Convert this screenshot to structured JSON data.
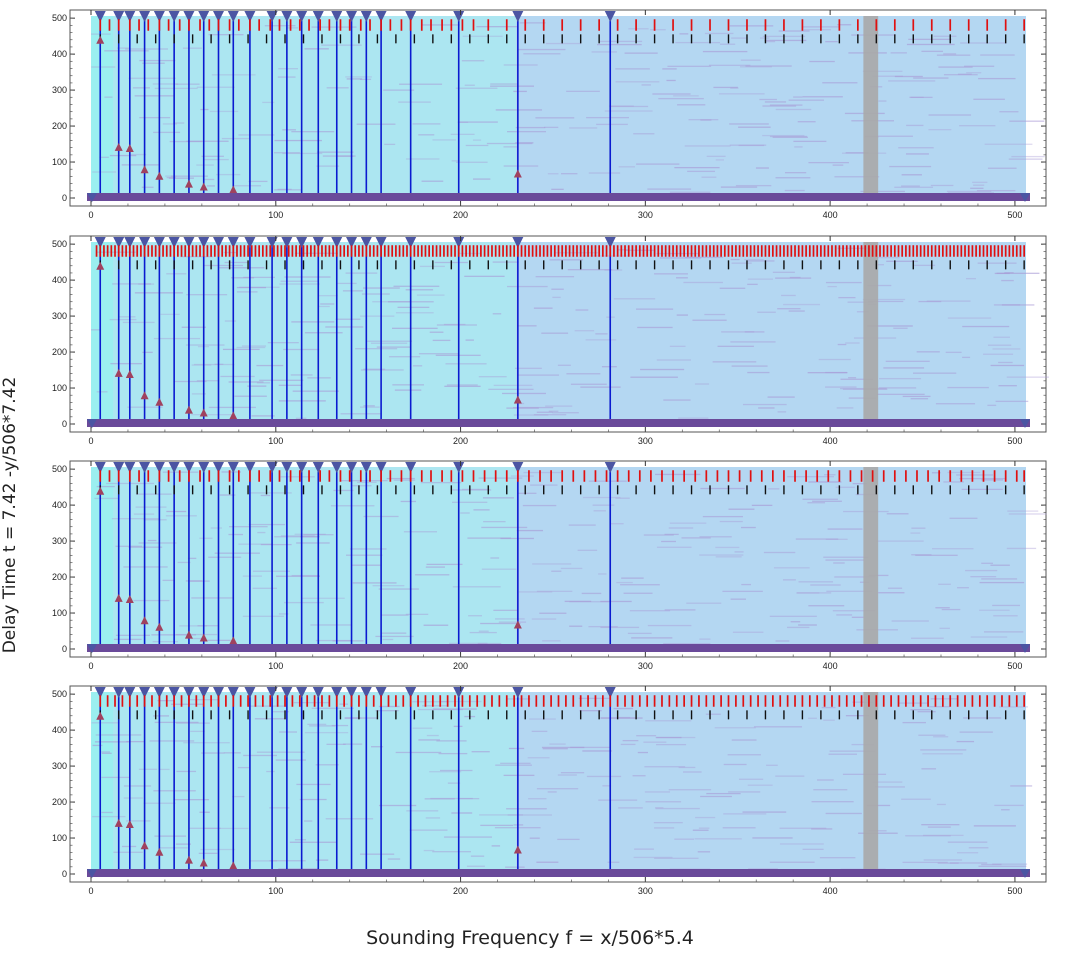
{
  "xlabel": "Sounding Frequency f = x/506*5.4",
  "ylabel": "Delay Time t = 7.42 -y/506*7.42",
  "colors": {
    "background": "#b4d7f2",
    "band_light": "#a6f2f0",
    "texture": "#a89bd6",
    "gray_column": "#a9a9a9",
    "blue_line": "#0a1ad0",
    "marker_triangle": "#4b55a3",
    "red_tick": "#e01010",
    "black_tick": "#111111",
    "peak_marker": "#a0425e",
    "baseline": "#6a4a9a"
  },
  "chart_data": [
    {
      "type": "heatmap",
      "panel": 1,
      "xlim": [
        0,
        506
      ],
      "ylim": [
        0,
        506
      ],
      "xticks": [
        0,
        100,
        200,
        300,
        400,
        500
      ],
      "yticks": [
        0,
        100,
        200,
        300,
        400,
        500
      ],
      "vertical_lines_x": [
        5,
        15,
        21,
        29,
        37,
        45,
        53,
        61,
        69,
        77,
        86,
        98,
        106,
        114,
        123,
        133,
        141,
        149,
        157,
        173,
        199,
        231,
        281
      ],
      "peaks": [
        [
          5,
          440
        ],
        [
          15,
          142
        ],
        [
          21,
          139
        ],
        [
          29,
          80
        ],
        [
          37,
          62
        ],
        [
          53,
          40
        ],
        [
          61,
          32
        ],
        [
          77,
          24
        ],
        [
          231,
          68
        ]
      ],
      "red_marks_x": [
        5,
        10,
        15,
        21,
        26,
        31,
        37,
        42,
        48,
        53,
        59,
        64,
        69,
        75,
        80,
        86,
        91,
        97,
        102,
        108,
        113,
        118,
        124,
        129,
        135,
        140,
        146,
        151,
        157,
        162,
        168,
        173,
        179,
        184,
        190,
        195,
        201,
        207,
        215,
        225,
        235,
        245,
        255,
        265,
        275,
        285,
        295,
        305,
        315,
        325,
        335,
        345,
        355,
        365,
        375,
        385,
        395,
        405,
        415,
        425,
        435,
        445,
        455,
        465,
        475,
        485,
        495,
        505
      ],
      "black_marks_x": [
        5,
        15,
        25,
        35,
        45,
        55,
        65,
        75,
        85,
        95,
        105,
        115,
        125,
        135,
        145,
        155,
        165,
        175,
        185,
        195,
        205,
        215,
        225,
        235,
        245,
        255,
        265,
        275,
        285,
        295,
        305,
        315,
        325,
        335,
        345,
        355,
        365,
        375,
        385,
        395,
        405,
        415,
        425,
        435,
        445,
        455,
        465,
        475,
        485,
        495,
        505
      ],
      "gray_band_x": [
        418,
        426
      ]
    },
    {
      "type": "heatmap",
      "panel": 2,
      "xlim": [
        0,
        506
      ],
      "ylim": [
        0,
        506
      ],
      "xticks": [
        0,
        100,
        200,
        300,
        400,
        500
      ],
      "yticks": [
        0,
        100,
        200,
        300,
        400,
        500
      ],
      "vertical_lines_x": [
        5,
        15,
        21,
        29,
        37,
        45,
        53,
        61,
        69,
        77,
        86,
        98,
        106,
        114,
        123,
        133,
        141,
        149,
        157,
        173,
        199,
        231,
        281
      ],
      "peaks": [
        [
          5,
          440
        ],
        [
          15,
          142
        ],
        [
          21,
          139
        ],
        [
          29,
          80
        ],
        [
          37,
          62
        ],
        [
          53,
          40
        ],
        [
          61,
          32
        ],
        [
          77,
          24
        ],
        [
          231,
          68
        ]
      ],
      "red_marks_x": [
        3,
        5,
        7,
        9,
        11,
        13,
        15,
        17,
        19,
        21,
        23,
        25,
        27,
        29,
        31,
        33,
        35,
        37,
        39,
        41,
        43,
        45,
        47,
        49,
        51,
        53,
        55,
        57,
        59,
        61,
        63,
        65,
        67,
        69,
        71,
        73,
        75,
        77,
        79,
        81,
        83,
        85,
        87,
        89,
        91,
        93,
        95,
        97,
        99,
        101,
        103,
        105,
        107,
        109,
        111,
        113,
        115,
        117,
        119,
        121,
        123,
        125,
        127,
        129,
        131,
        133,
        135,
        137,
        139,
        141,
        143,
        145,
        147,
        149,
        151,
        153,
        155,
        157,
        159,
        161,
        163,
        165,
        167,
        169,
        171,
        173,
        175,
        177,
        179,
        181,
        183,
        185,
        187,
        189,
        191,
        193,
        195,
        197,
        199,
        201,
        203,
        205,
        207,
        209,
        211,
        213,
        215,
        217,
        219,
        221,
        223,
        225,
        227,
        229,
        231,
        233,
        235,
        237,
        239,
        241,
        243,
        245,
        247,
        249,
        251,
        253,
        255,
        257,
        259,
        261,
        263,
        265,
        267,
        269,
        271,
        273,
        275,
        277,
        279,
        281,
        283,
        285,
        287,
        289,
        291,
        293,
        295,
        297,
        299,
        301,
        303,
        305,
        307,
        309,
        311,
        313,
        315,
        317,
        319,
        321,
        323,
        325,
        327,
        329,
        331,
        333,
        335,
        337,
        339,
        341,
        343,
        345,
        347,
        349,
        351,
        353,
        355,
        357,
        359,
        361,
        363,
        365,
        367,
        369,
        371,
        373,
        375,
        377,
        379,
        381,
        383,
        385,
        387,
        389,
        391,
        393,
        395,
        397,
        399,
        401,
        403,
        405,
        407,
        409,
        411,
        413,
        415,
        417,
        419,
        421,
        423,
        425,
        427,
        429,
        431,
        433,
        435,
        437,
        439,
        441,
        443,
        445,
        447,
        449,
        451,
        453,
        455,
        457,
        459,
        461,
        463,
        465,
        467,
        469,
        471,
        473,
        475,
        477,
        479,
        481,
        483,
        485,
        487,
        489,
        491,
        493,
        495,
        497,
        499,
        501,
        503,
        505
      ],
      "black_marks_x": [
        5,
        15,
        25,
        35,
        45,
        55,
        65,
        75,
        85,
        95,
        105,
        115,
        125,
        135,
        145,
        155,
        165,
        175,
        185,
        195,
        205,
        215,
        225,
        235,
        245,
        255,
        265,
        275,
        285,
        295,
        305,
        315,
        325,
        335,
        345,
        355,
        365,
        375,
        385,
        395,
        405,
        415,
        425,
        435,
        445,
        455,
        465,
        475,
        485,
        495,
        505
      ],
      "gray_band_x": [
        418,
        426
      ]
    },
    {
      "type": "heatmap",
      "panel": 3,
      "xlim": [
        0,
        506
      ],
      "ylim": [
        0,
        506
      ],
      "xticks": [
        0,
        100,
        200,
        300,
        400,
        500
      ],
      "yticks": [
        0,
        100,
        200,
        300,
        400,
        500
      ],
      "vertical_lines_x": [
        5,
        15,
        21,
        29,
        37,
        45,
        53,
        61,
        69,
        77,
        86,
        98,
        106,
        114,
        123,
        133,
        141,
        149,
        157,
        173,
        199,
        231,
        281
      ],
      "peaks": [
        [
          5,
          440
        ],
        [
          15,
          142
        ],
        [
          21,
          139
        ],
        [
          29,
          80
        ],
        [
          37,
          62
        ],
        [
          53,
          40
        ],
        [
          61,
          32
        ],
        [
          77,
          24
        ],
        [
          231,
          68
        ]
      ],
      "red_marks_x": [
        5,
        10,
        15,
        21,
        26,
        31,
        37,
        42,
        48,
        53,
        59,
        64,
        69,
        75,
        80,
        86,
        91,
        97,
        102,
        108,
        113,
        118,
        124,
        129,
        135,
        140,
        146,
        151,
        157,
        162,
        168,
        173,
        179,
        184,
        190,
        195,
        201,
        207,
        213,
        219,
        225,
        231,
        237,
        243,
        249,
        255,
        261,
        267,
        273,
        279,
        285,
        291,
        297,
        303,
        309,
        315,
        321,
        327,
        333,
        339,
        345,
        351,
        357,
        363,
        369,
        375,
        381,
        387,
        393,
        399,
        405,
        411,
        417,
        423,
        429,
        435,
        441,
        447,
        453,
        459,
        465,
        471,
        477,
        483,
        489,
        495,
        501,
        505
      ],
      "black_marks_x": [
        5,
        15,
        25,
        35,
        45,
        55,
        65,
        75,
        85,
        95,
        105,
        115,
        125,
        135,
        145,
        155,
        165,
        175,
        185,
        195,
        205,
        215,
        225,
        235,
        245,
        255,
        265,
        275,
        285,
        295,
        305,
        315,
        325,
        335,
        345,
        355,
        365,
        375,
        385,
        395,
        405,
        415,
        425,
        435,
        445,
        455,
        465,
        475,
        485,
        495,
        505
      ],
      "gray_band_x": [
        418,
        426
      ]
    },
    {
      "type": "heatmap",
      "panel": 4,
      "xlim": [
        0,
        506
      ],
      "ylim": [
        0,
        506
      ],
      "xticks": [
        0,
        100,
        200,
        300,
        400,
        500
      ],
      "yticks": [
        0,
        100,
        200,
        300,
        400,
        500
      ],
      "vertical_lines_x": [
        5,
        15,
        21,
        29,
        37,
        45,
        53,
        61,
        69,
        77,
        86,
        98,
        106,
        114,
        123,
        133,
        141,
        149,
        157,
        173,
        199,
        231,
        281
      ],
      "peaks": [
        [
          5,
          440
        ],
        [
          15,
          142
        ],
        [
          21,
          139
        ],
        [
          29,
          80
        ],
        [
          37,
          62
        ],
        [
          53,
          40
        ],
        [
          61,
          32
        ],
        [
          77,
          24
        ],
        [
          231,
          68
        ]
      ],
      "red_marks_x": [
        5,
        9,
        13,
        17,
        21,
        25,
        29,
        33,
        37,
        41,
        45,
        49,
        53,
        57,
        61,
        65,
        69,
        73,
        77,
        81,
        85,
        89,
        93,
        97,
        101,
        105,
        109,
        113,
        117,
        121,
        125,
        129,
        133,
        137,
        141,
        145,
        149,
        153,
        157,
        161,
        165,
        169,
        173,
        177,
        181,
        185,
        189,
        193,
        197,
        201,
        205,
        209,
        213,
        217,
        221,
        225,
        229,
        233,
        237,
        241,
        245,
        249,
        253,
        257,
        261,
        265,
        269,
        273,
        277,
        281,
        285,
        289,
        293,
        297,
        301,
        305,
        309,
        313,
        317,
        321,
        325,
        329,
        333,
        337,
        341,
        345,
        349,
        353,
        357,
        361,
        365,
        369,
        373,
        377,
        381,
        385,
        389,
        393,
        397,
        401,
        405,
        409,
        413,
        417,
        421,
        425,
        429,
        433,
        437,
        441,
        445,
        449,
        453,
        457,
        461,
        465,
        469,
        473,
        477,
        481,
        485,
        489,
        493,
        497,
        501,
        505
      ],
      "black_marks_x": [
        5,
        15,
        25,
        35,
        45,
        55,
        65,
        75,
        85,
        95,
        105,
        115,
        125,
        135,
        145,
        155,
        165,
        175,
        185,
        195,
        205,
        215,
        225,
        235,
        245,
        255,
        265,
        275,
        285,
        295,
        305,
        315,
        325,
        335,
        345,
        355,
        365,
        375,
        385,
        395,
        405,
        415,
        425,
        435,
        445,
        455,
        465,
        475,
        485,
        495,
        505
      ],
      "gray_band_x": [
        418,
        426
      ]
    }
  ]
}
